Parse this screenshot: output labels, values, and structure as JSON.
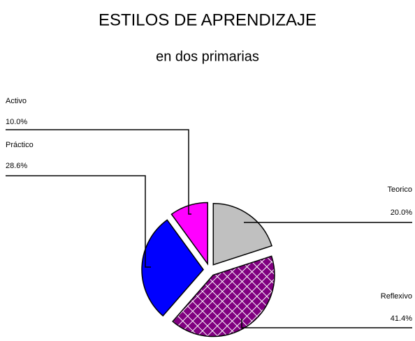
{
  "chart_data": {
    "type": "pie",
    "title": "ESTILOS DE APRENDIZAJE",
    "subtitle": "en dos primarias",
    "categories": [
      "Teorico",
      "Reflexivo",
      "Práctico",
      "Activo"
    ],
    "values": [
      20.0,
      41.4,
      28.6,
      10.0
    ],
    "value_labels": [
      "20.0%",
      "41.4%",
      "28.6%",
      "10.0%"
    ],
    "colors": [
      "#c0c0c0",
      "#800080",
      "#0000ff",
      "#ff00ff"
    ],
    "patterns": [
      null,
      "crosshatch",
      null,
      null
    ]
  }
}
